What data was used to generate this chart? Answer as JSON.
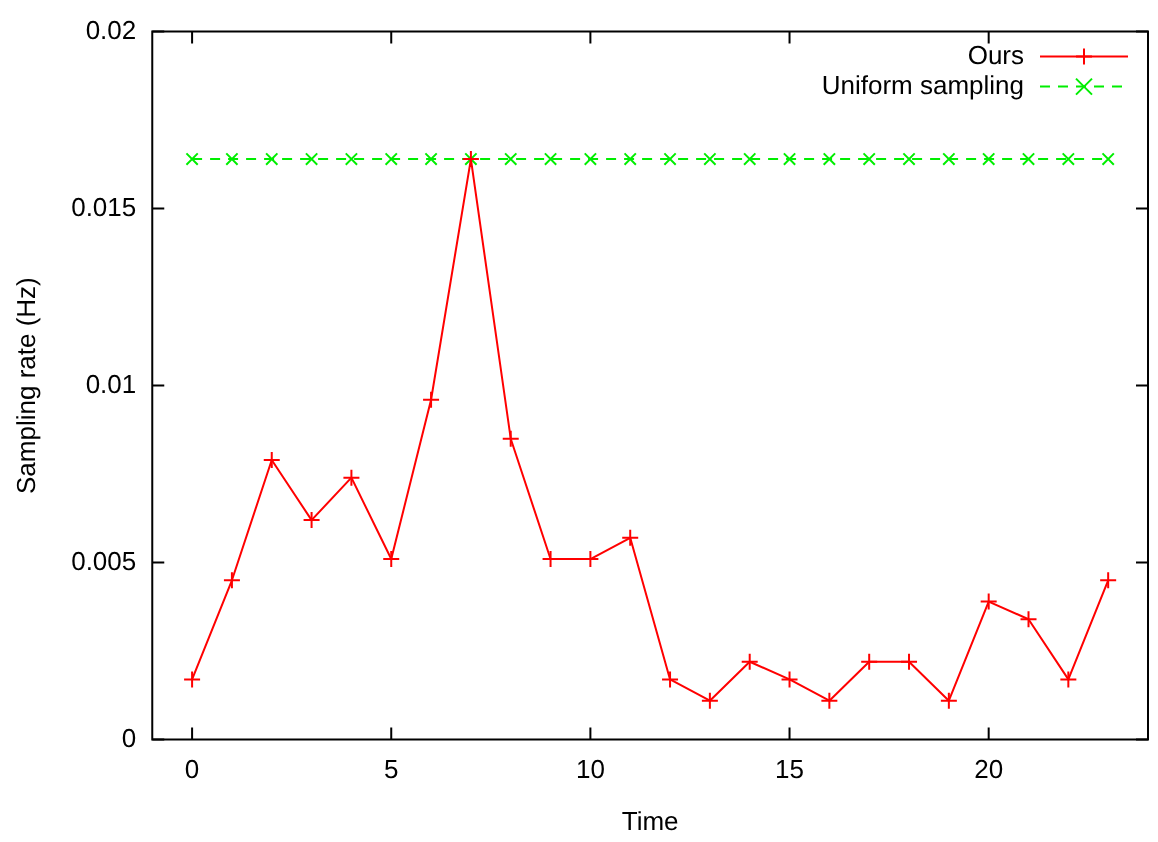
{
  "chart_data": {
    "type": "line",
    "xlabel": "Time",
    "ylabel": "Sampling rate (Hz)",
    "x": [
      0,
      1,
      2,
      3,
      4,
      5,
      6,
      7,
      8,
      9,
      10,
      11,
      12,
      13,
      14,
      15,
      16,
      17,
      18,
      19,
      20,
      21,
      22,
      23
    ],
    "series": [
      {
        "name": "Ours",
        "color": "#ff0000",
        "marker": "cross",
        "line_style": "solid",
        "values": [
          0.0017,
          0.0045,
          0.0079,
          0.0062,
          0.0074,
          0.0051,
          0.0096,
          0.0164,
          0.0085,
          0.0051,
          0.0051,
          0.0057,
          0.0017,
          0.0011,
          0.0022,
          0.0017,
          0.0011,
          0.0022,
          0.0022,
          0.0011,
          0.0039,
          0.0034,
          0.0017,
          0.0045
        ]
      },
      {
        "name": "Uniform sampling",
        "color": "#00ee00",
        "marker": "x",
        "line_style": "dashed",
        "values": [
          0.0164,
          0.0164,
          0.0164,
          0.0164,
          0.0164,
          0.0164,
          0.0164,
          0.0164,
          0.0164,
          0.0164,
          0.0164,
          0.0164,
          0.0164,
          0.0164,
          0.0164,
          0.0164,
          0.0164,
          0.0164,
          0.0164,
          0.0164,
          0.0164,
          0.0164,
          0.0164,
          0.0164
        ]
      }
    ],
    "xlim": [
      -1,
      24
    ],
    "xticks": [
      0,
      5,
      10,
      15,
      20
    ],
    "ylim": [
      0,
      0.02
    ],
    "yticks": [
      0,
      0.005,
      0.01,
      0.015,
      0.02
    ],
    "grid": false,
    "legend": "top right"
  }
}
